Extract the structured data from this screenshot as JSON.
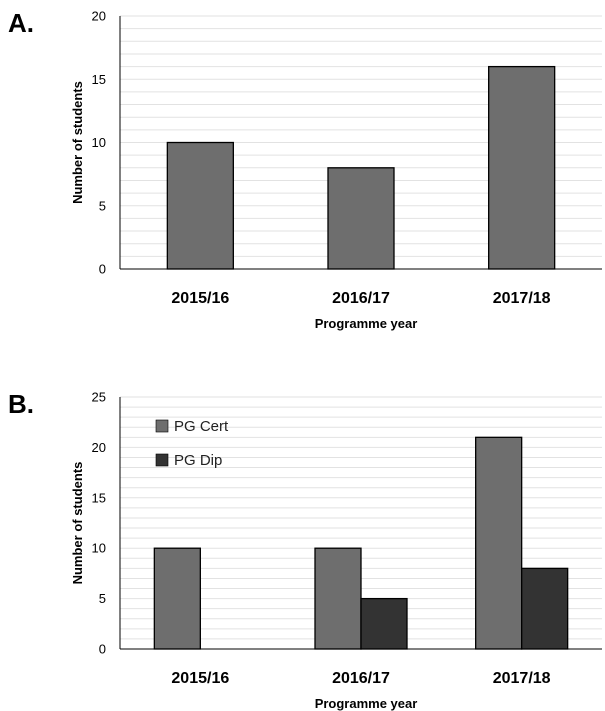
{
  "chart_data": [
    {
      "panel_label": "A.",
      "type": "bar",
      "categories": [
        "2015/16",
        "2016/17",
        "2017/18"
      ],
      "series": [
        {
          "name": "",
          "values": [
            10,
            8,
            16
          ],
          "color": "#6e6e6e"
        }
      ],
      "xlabel": "Programme year",
      "ylabel": "Number of students",
      "ylim": [
        0,
        20
      ],
      "yticks": [
        0,
        5,
        10,
        15,
        20
      ],
      "minor_grid_step": 1,
      "grid": true,
      "legend": null
    },
    {
      "panel_label": "B.",
      "type": "bar",
      "categories": [
        "2015/16",
        "2016/17",
        "2017/18"
      ],
      "series": [
        {
          "name": "PG Cert",
          "values": [
            10,
            10,
            21
          ],
          "color": "#6e6e6e"
        },
        {
          "name": "PG Dip",
          "values": [
            0,
            5,
            8
          ],
          "color": "#333333"
        }
      ],
      "xlabel": "Programme year",
      "ylabel": "Number of students",
      "ylim": [
        0,
        25
      ],
      "yticks": [
        0,
        5,
        10,
        15,
        20,
        25
      ],
      "minor_grid_step": 1,
      "grid": true,
      "legend": "top-left"
    }
  ]
}
